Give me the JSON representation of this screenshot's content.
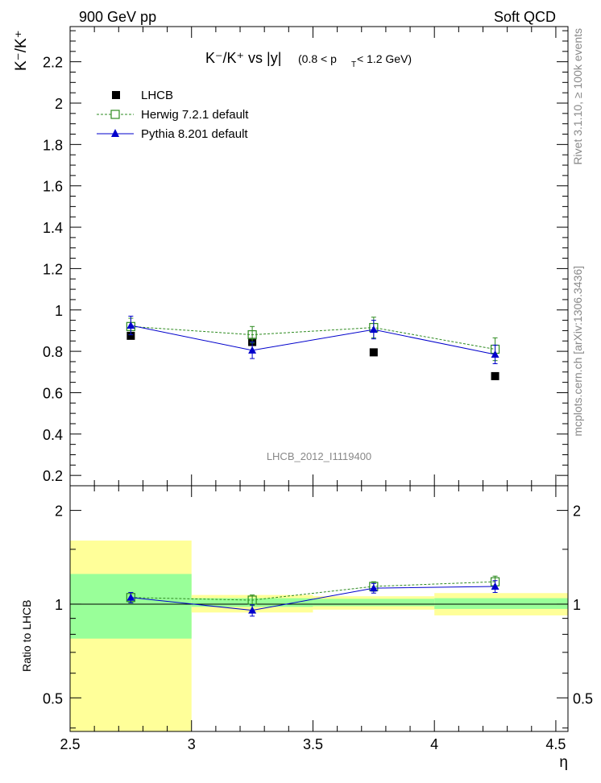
{
  "header": {
    "left": "900 GeV pp",
    "right": "Soft QCD"
  },
  "side_labels": {
    "rivet": "Rivet 3.1.10, ≥ 100k events",
    "mcplots": "mcplots.cern.ch [arXiv:1306.3436]"
  },
  "analysis_tag": "LHCB_2012_I1119400",
  "chart_data": [
    {
      "type": "scatter",
      "panel": "main",
      "title": "K⁻/K⁺ vs |y| (0.8 < p",
      "title_parts": {
        "main": "K⁻/K⁺ vs |y|",
        "cut_prefix": "(0.8 < p",
        "cut_sub": "T",
        "cut_suffix": " < 1.2 GeV)"
      },
      "ylabel": "K⁻/K⁺",
      "xlim": [
        2.5,
        4.55
      ],
      "ylim": [
        0.15,
        2.37
      ],
      "yticks": [
        0.2,
        0.4,
        0.6,
        0.8,
        1,
        1.2,
        1.4,
        1.6,
        1.8,
        2,
        2.2
      ],
      "ytick_labels": [
        "0.2",
        "0.4",
        "0.6",
        "0.8",
        "1",
        "1.2",
        "1.4",
        "1.6",
        "1.8",
        "2",
        "2.2"
      ],
      "legend_position": "top-left",
      "series": [
        {
          "name": "LHCB",
          "style": "data",
          "color": "#000000",
          "x": [
            2.75,
            3.25,
            3.75,
            4.25
          ],
          "y": [
            0.875,
            0.845,
            0.795,
            0.68
          ]
        },
        {
          "name": "Herwig 7.2.1 default",
          "style": "herwig",
          "color": "#2e8b20",
          "x": [
            2.75,
            3.25,
            3.75,
            4.25
          ],
          "y": [
            0.92,
            0.88,
            0.915,
            0.81
          ],
          "err": [
            0.04,
            0.04,
            0.05,
            0.055
          ]
        },
        {
          "name": "Pythia 8.201 default",
          "style": "pythia",
          "color": "#0000cc",
          "x": [
            2.75,
            3.25,
            3.75,
            4.25
          ],
          "y": [
            0.925,
            0.805,
            0.905,
            0.785
          ],
          "err": [
            0.045,
            0.04,
            0.045,
            0.045
          ]
        }
      ]
    },
    {
      "type": "scatter",
      "panel": "ratio",
      "ylabel": "Ratio to LHCB",
      "xlabel": "η",
      "xlim": [
        2.5,
        4.55
      ],
      "ylim": [
        0.39,
        2.4
      ],
      "yscale": "log",
      "yticks": [
        0.5,
        1,
        2
      ],
      "ytick_labels": [
        "0.5",
        "1",
        "2"
      ],
      "xticks": [
        2.5,
        3,
        3.5,
        4,
        4.5
      ],
      "xtick_labels": [
        "2.5",
        "3",
        "3.5",
        "4",
        "4.5"
      ],
      "bands": [
        {
          "x0": 2.5,
          "x1": 3.0,
          "stat_lo": 0.775,
          "stat_hi": 1.25,
          "tot_lo": 0.385,
          "tot_hi": 1.6
        },
        {
          "x0": 3.0,
          "x1": 3.5,
          "stat_lo": 0.98,
          "stat_hi": 1.045,
          "tot_lo": 0.94,
          "tot_hi": 1.07
        },
        {
          "x0": 3.5,
          "x1": 4.0,
          "stat_lo": 0.985,
          "stat_hi": 1.04,
          "tot_lo": 0.96,
          "tot_hi": 1.06
        },
        {
          "x0": 4.0,
          "x1": 4.55,
          "stat_lo": 0.965,
          "stat_hi": 1.045,
          "tot_lo": 0.92,
          "tot_hi": 1.085
        }
      ],
      "band_colors": {
        "stat": "#99ff99",
        "total": "#ffff99"
      },
      "series": [
        {
          "name": "Herwig 7.2.1 default",
          "style": "herwig",
          "color": "#2e8b20",
          "x": [
            2.75,
            3.25,
            3.75,
            4.25
          ],
          "y": [
            1.05,
            1.03,
            1.14,
            1.18
          ],
          "err": [
            0.04,
            0.04,
            0.04,
            0.05
          ]
        },
        {
          "name": "Pythia 8.201 default",
          "style": "pythia",
          "color": "#0000cc",
          "x": [
            2.75,
            3.25,
            3.75,
            4.25
          ],
          "y": [
            1.05,
            0.955,
            1.125,
            1.14
          ],
          "err": [
            0.04,
            0.04,
            0.04,
            0.05
          ]
        }
      ]
    }
  ]
}
